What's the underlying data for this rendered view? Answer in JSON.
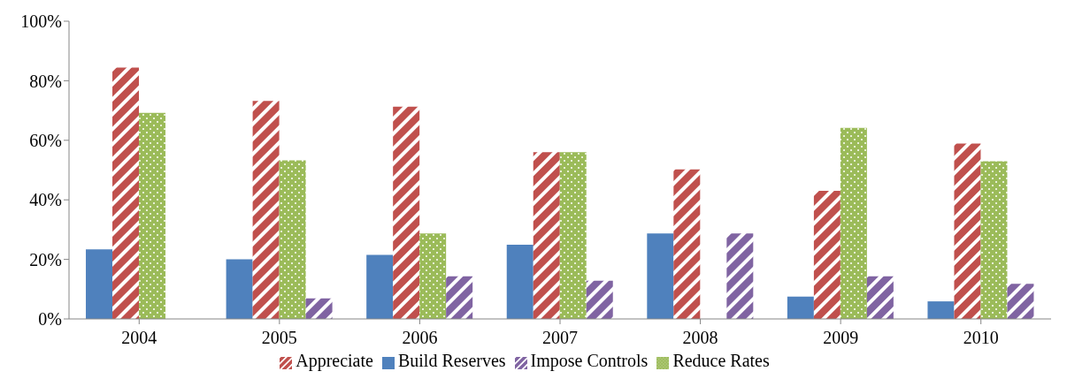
{
  "chart_data": {
    "type": "bar",
    "categories": [
      "2004",
      "2005",
      "2006",
      "2007",
      "2008",
      "2009",
      "2010"
    ],
    "series": [
      {
        "name": "Build Reserves",
        "color": "#4f81bd",
        "values": [
          23.4,
          20,
          21.5,
          24.9,
          28.7,
          7.5,
          5.9
        ]
      },
      {
        "name": "Appreciate",
        "color": "#c0504d",
        "values": [
          84.4,
          73.2,
          71.3,
          56,
          50.2,
          43,
          58.9
        ]
      },
      {
        "name": "Reduce Rates",
        "color": "#9bbb59",
        "values": [
          69.2,
          53.3,
          28.7,
          56,
          null,
          64.2,
          53
        ]
      },
      {
        "name": "Impose Controls",
        "color": "#8064a2",
        "values": [
          null,
          6.9,
          14.3,
          12.8,
          28.7,
          14.3,
          11.8
        ]
      }
    ],
    "ylim": [
      0,
      100
    ],
    "yticks": [
      {
        "value": 0,
        "label": "0%"
      },
      {
        "value": 20,
        "label": "20%"
      },
      {
        "value": 40,
        "label": "40%"
      },
      {
        "value": 60,
        "label": "60%"
      },
      {
        "value": 80,
        "label": "80%"
      },
      {
        "value": 100,
        "label": "100%"
      }
    ],
    "grid": false,
    "legend": "bottom"
  }
}
